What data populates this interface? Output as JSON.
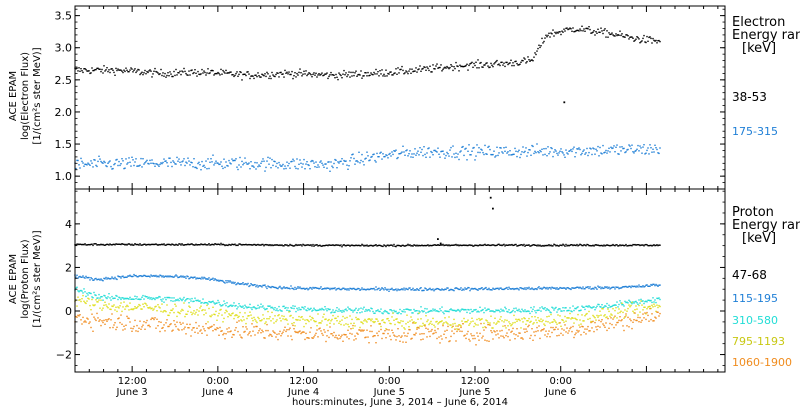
{
  "chart_data": [
    {
      "type": "scatter",
      "ylabel_lines": [
        "ACE EPAM",
        "log(Electron Flux)",
        "[1/(cm²s ster MeV)]"
      ],
      "ylim": [
        0.8,
        3.65
      ],
      "yticks": [
        1.0,
        1.5,
        2.0,
        2.5,
        3.0,
        3.5
      ],
      "ytick_labels": [
        "1.0",
        "1.5",
        "2.0",
        "2.5",
        "3.0",
        "3.5"
      ],
      "legend": {
        "title_lines": [
          "Electron",
          "Energy ranges",
          "[keV]"
        ],
        "entries": [
          {
            "label": "38-53",
            "color": "#000000"
          },
          {
            "label": "175-315",
            "color": "#1f7fd6"
          }
        ]
      },
      "series": [
        {
          "name": "38-53",
          "color": "#000000",
          "x_hours": [
            0,
            6,
            12,
            18,
            24,
            30,
            36,
            42,
            48,
            54,
            60,
            64,
            66,
            70,
            76,
            78,
            80,
            82
          ],
          "values": [
            2.65,
            2.65,
            2.6,
            2.62,
            2.57,
            2.6,
            2.57,
            2.6,
            2.65,
            2.72,
            2.75,
            2.8,
            3.2,
            3.3,
            3.2,
            3.15,
            3.12,
            3.1
          ],
          "noise": 0.06,
          "outliers": [
            [
              68.5,
              2.15
            ]
          ]
        },
        {
          "name": "175-315",
          "color": "#1f7fd6",
          "x_hours": [
            0,
            12,
            24,
            36,
            42,
            48,
            60,
            72,
            82
          ],
          "values": [
            1.18,
            1.2,
            1.2,
            1.18,
            1.3,
            1.38,
            1.38,
            1.4,
            1.42
          ],
          "noise": 0.1,
          "outliers": []
        }
      ]
    },
    {
      "type": "scatter",
      "ylabel_lines": [
        "ACE EPAM",
        "log(Proton Flux)",
        "[1/(cm²s ster MeV)]"
      ],
      "ylim": [
        -2.8,
        5.6
      ],
      "yticks": [
        -2,
        0,
        2,
        4
      ],
      "ytick_labels": [
        "−2",
        "0",
        "2",
        "4"
      ],
      "legend": {
        "title_lines": [
          "Proton",
          "Energy ranges",
          "[keV]"
        ],
        "entries": [
          {
            "label": "47-68",
            "color": "#000000"
          },
          {
            "label": "115-195",
            "color": "#1f7fd6"
          },
          {
            "label": "310-580",
            "color": "#22ddd6"
          },
          {
            "label": "795-1193",
            "color": "#dede1a"
          },
          {
            "label": "1060-1900",
            "color": "#f08c1e"
          }
        ]
      },
      "series": [
        {
          "name": "47-68",
          "color": "#000000",
          "x_hours": [
            0,
            20,
            40,
            55,
            62,
            82
          ],
          "values": [
            3.05,
            3.05,
            3.0,
            3.02,
            3.02,
            3.02
          ],
          "noise": 0.04,
          "outliers": [
            [
              50.8,
              3.3
            ],
            [
              51.2,
              3.1
            ],
            [
              58.2,
              5.2
            ],
            [
              58.5,
              4.7
            ]
          ]
        },
        {
          "name": "115-195",
          "color": "#1f7fd6",
          "x_hours": [
            0,
            3,
            8,
            12,
            18,
            24,
            30,
            40,
            50,
            60,
            70,
            78,
            82
          ],
          "values": [
            1.6,
            1.45,
            1.6,
            1.6,
            1.5,
            1.2,
            1.05,
            1.0,
            1.0,
            1.02,
            1.05,
            1.1,
            1.2
          ],
          "noise": 0.07,
          "outliers": []
        },
        {
          "name": "310-580",
          "color": "#22ddd6",
          "x_hours": [
            0,
            4,
            10,
            18,
            24,
            34,
            44,
            54,
            62,
            70,
            76,
            82
          ],
          "values": [
            1.0,
            0.6,
            0.6,
            0.45,
            0.2,
            0.05,
            0.0,
            0.02,
            0.03,
            0.1,
            0.3,
            0.55
          ],
          "noise": 0.14,
          "outliers": []
        },
        {
          "name": "795-1193",
          "color": "#dede1a",
          "x_hours": [
            0,
            4,
            10,
            18,
            24,
            34,
            44,
            54,
            62,
            70,
            76,
            82
          ],
          "values": [
            0.5,
            0.25,
            0.15,
            -0.05,
            -0.3,
            -0.45,
            -0.5,
            -0.55,
            -0.5,
            -0.35,
            -0.05,
            0.2
          ],
          "noise": 0.28,
          "outliers": []
        },
        {
          "name": "1060-1900",
          "color": "#f08c1e",
          "x_hours": [
            0,
            4,
            10,
            18,
            24,
            34,
            44,
            54,
            62,
            70,
            76,
            82
          ],
          "values": [
            -0.3,
            -0.45,
            -0.6,
            -0.8,
            -0.95,
            -1.05,
            -1.05,
            -1.05,
            -1.0,
            -0.85,
            -0.5,
            -0.2
          ],
          "noise": 0.4,
          "outliers": []
        }
      ]
    }
  ],
  "x_axis": {
    "range_hours": [
      0,
      91
    ],
    "ticks": [
      {
        "hours": 8,
        "top": "12:00",
        "bottom": "June 3"
      },
      {
        "hours": 20,
        "top": "0:00",
        "bottom": "June 4"
      },
      {
        "hours": 32,
        "top": "12:00",
        "bottom": "June 4"
      },
      {
        "hours": 44,
        "top": "0:00",
        "bottom": "June 5"
      },
      {
        "hours": 56,
        "top": "12:00",
        "bottom": "June 5"
      },
      {
        "hours": 68,
        "top": "0:00",
        "bottom": "June 6"
      }
    ],
    "xlabel": "hours:minutes, June 3, 2014 – June 6, 2014"
  }
}
